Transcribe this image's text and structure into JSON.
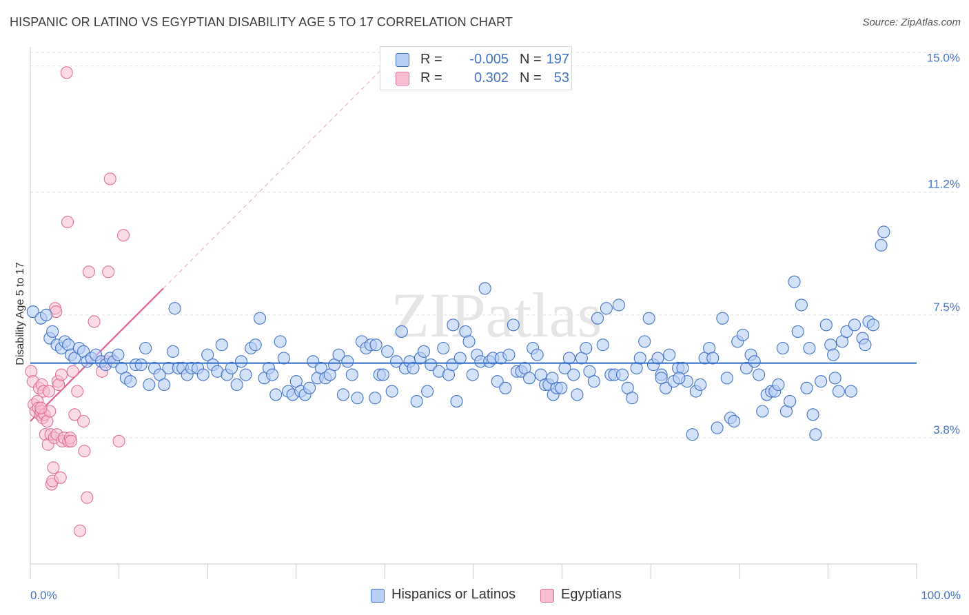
{
  "title": "HISPANIC OR LATINO VS EGYPTIAN DISABILITY AGE 5 TO 17 CORRELATION CHART",
  "source": "Source: ZipAtlas.com",
  "watermark": "ZIPatlas",
  "colors": {
    "blue": "#4472c4",
    "blue_fill": "#b8cff5",
    "blue_line": "#3b73c8",
    "pink": "#e0709a",
    "pink_fill": "#f7bdd0",
    "pink_line": "#e3628f",
    "grid": "#dddddd"
  },
  "legend": {
    "rows": [
      {
        "r_label": "R =",
        "r_value": "-0.005",
        "n_label": "N =",
        "n_value": "197"
      },
      {
        "r_label": "R =",
        "r_value": "0.302",
        "n_label": "N =",
        "n_value": "53"
      }
    ]
  },
  "bottom_legend": {
    "series1": "Hispanics or Latinos",
    "series2": "Egyptians"
  },
  "chart_data": {
    "type": "scatter",
    "xlabel": "",
    "ylabel": "Disability Age 5 to 17",
    "xlim": [
      0,
      100
    ],
    "ylim": [
      0,
      15.7
    ],
    "x_tick_labels": [
      "0.0%",
      "100.0%"
    ],
    "y_ticks": [
      {
        "value": 3.8,
        "label": "3.8%"
      },
      {
        "value": 7.5,
        "label": "7.5%"
      },
      {
        "value": 11.2,
        "label": "11.2%"
      },
      {
        "value": 15.0,
        "label": "15.0%"
      }
    ],
    "grid": true,
    "legend_position": "top-center",
    "series": [
      {
        "name": "Hispanics or Latinos",
        "color": "blue",
        "trend": {
          "x": [
            0,
            100
          ],
          "y": [
            6.05,
            6.05
          ]
        },
        "points": [
          [
            0.3,
            7.6
          ],
          [
            1.2,
            7.4
          ],
          [
            1.8,
            7.5
          ],
          [
            2.2,
            6.8
          ],
          [
            2.5,
            7.0
          ],
          [
            3.0,
            6.6
          ],
          [
            3.5,
            6.5
          ],
          [
            3.9,
            6.7
          ],
          [
            4.3,
            6.6
          ],
          [
            4.6,
            6.3
          ],
          [
            5.0,
            6.2
          ],
          [
            5.5,
            6.5
          ],
          [
            6.0,
            6.4
          ],
          [
            6.4,
            6.1
          ],
          [
            6.9,
            6.2
          ],
          [
            7.4,
            6.3
          ],
          [
            8.0,
            6.1
          ],
          [
            8.5,
            6.0
          ],
          [
            9.0,
            6.2
          ],
          [
            9.4,
            6.1
          ],
          [
            9.9,
            6.3
          ],
          [
            10.3,
            5.9
          ],
          [
            10.8,
            5.6
          ],
          [
            11.3,
            5.5
          ],
          [
            11.9,
            6.0
          ],
          [
            12.5,
            6.0
          ],
          [
            13.0,
            6.5
          ],
          [
            13.4,
            5.4
          ],
          [
            14.0,
            5.9
          ],
          [
            14.6,
            5.7
          ],
          [
            15.1,
            5.4
          ],
          [
            15.6,
            5.9
          ],
          [
            16.1,
            6.4
          ],
          [
            16.7,
            5.9
          ],
          [
            17.2,
            5.9
          ],
          [
            17.7,
            5.7
          ],
          [
            18.2,
            5.9
          ],
          [
            18.9,
            5.9
          ],
          [
            19.5,
            5.7
          ],
          [
            20.0,
            6.3
          ],
          [
            20.6,
            6.0
          ],
          [
            21.1,
            5.8
          ],
          [
            21.6,
            6.6
          ],
          [
            22.2,
            5.7
          ],
          [
            22.7,
            5.9
          ],
          [
            23.3,
            5.4
          ],
          [
            23.8,
            6.1
          ],
          [
            24.3,
            5.7
          ],
          [
            24.9,
            6.5
          ],
          [
            25.4,
            6.6
          ],
          [
            25.9,
            7.4
          ],
          [
            26.4,
            5.6
          ],
          [
            26.9,
            5.9
          ],
          [
            27.3,
            5.7
          ],
          [
            27.7,
            5.1
          ],
          [
            28.2,
            6.7
          ],
          [
            28.6,
            6.2
          ],
          [
            29.1,
            5.2
          ],
          [
            29.6,
            5.1
          ],
          [
            30.0,
            5.5
          ],
          [
            30.5,
            5.2
          ],
          [
            31.0,
            5.1
          ],
          [
            31.5,
            5.3
          ],
          [
            31.9,
            6.1
          ],
          [
            32.4,
            5.6
          ],
          [
            32.8,
            5.9
          ],
          [
            33.3,
            5.6
          ],
          [
            33.8,
            5.7
          ],
          [
            34.3,
            6.0
          ],
          [
            34.8,
            6.3
          ],
          [
            35.3,
            5.1
          ],
          [
            35.8,
            6.1
          ],
          [
            36.3,
            5.7
          ],
          [
            36.9,
            5.0
          ],
          [
            37.4,
            6.7
          ],
          [
            37.9,
            6.5
          ],
          [
            38.4,
            6.6
          ],
          [
            38.9,
            5.0
          ],
          [
            39.4,
            5.7
          ],
          [
            39.8,
            5.7
          ],
          [
            40.3,
            6.4
          ],
          [
            40.8,
            5.2
          ],
          [
            41.3,
            6.1
          ],
          [
            41.9,
            7.0
          ],
          [
            42.3,
            5.9
          ],
          [
            42.8,
            6.1
          ],
          [
            43.2,
            5.9
          ],
          [
            43.6,
            4.9
          ],
          [
            44.0,
            6.2
          ],
          [
            44.4,
            6.4
          ],
          [
            44.8,
            5.2
          ],
          [
            45.2,
            6.0
          ],
          [
            46.1,
            5.8
          ],
          [
            46.6,
            6.5
          ],
          [
            47.2,
            5.7
          ],
          [
            47.6,
            6.0
          ],
          [
            48.1,
            4.9
          ],
          [
            48.5,
            6.2
          ],
          [
            49.1,
            7.0
          ],
          [
            49.5,
            6.7
          ],
          [
            49.9,
            5.7
          ],
          [
            50.4,
            6.3
          ],
          [
            50.8,
            6.1
          ],
          [
            51.3,
            8.3
          ],
          [
            51.8,
            6.1
          ],
          [
            52.2,
            6.2
          ],
          [
            52.7,
            5.5
          ],
          [
            53.1,
            6.2
          ],
          [
            53.6,
            5.3
          ],
          [
            54.0,
            6.3
          ],
          [
            54.5,
            7.2
          ],
          [
            54.9,
            5.8
          ],
          [
            55.4,
            5.8
          ],
          [
            55.8,
            5.9
          ],
          [
            56.3,
            5.6
          ],
          [
            56.7,
            6.5
          ],
          [
            57.2,
            6.3
          ],
          [
            57.6,
            5.7
          ],
          [
            58.1,
            5.4
          ],
          [
            58.5,
            5.4
          ],
          [
            59.0,
            5.1
          ],
          [
            59.4,
            5.3
          ],
          [
            59.9,
            5.3
          ],
          [
            60.3,
            5.9
          ],
          [
            60.8,
            6.2
          ],
          [
            61.3,
            5.7
          ],
          [
            61.7,
            5.1
          ],
          [
            62.2,
            6.2
          ],
          [
            62.7,
            6.5
          ],
          [
            63.1,
            5.8
          ],
          [
            63.6,
            5.5
          ],
          [
            64.0,
            7.4
          ],
          [
            64.6,
            6.6
          ],
          [
            65.0,
            7.7
          ],
          [
            65.5,
            5.7
          ],
          [
            65.9,
            5.7
          ],
          [
            66.4,
            7.8
          ],
          [
            66.8,
            5.7
          ],
          [
            67.4,
            5.3
          ],
          [
            67.9,
            5.0
          ],
          [
            68.4,
            5.9
          ],
          [
            68.8,
            6.2
          ],
          [
            69.3,
            6.7
          ],
          [
            69.8,
            7.4
          ],
          [
            70.3,
            6.0
          ],
          [
            70.8,
            6.2
          ],
          [
            71.2,
            5.7
          ],
          [
            71.7,
            5.3
          ],
          [
            72.1,
            6.3
          ],
          [
            72.6,
            5.5
          ],
          [
            73.1,
            5.9
          ],
          [
            73.6,
            5.9
          ],
          [
            74.1,
            5.5
          ],
          [
            74.7,
            3.9
          ],
          [
            75.1,
            5.2
          ],
          [
            75.6,
            5.4
          ],
          [
            76.1,
            6.2
          ],
          [
            76.6,
            6.5
          ],
          [
            77.0,
            6.2
          ],
          [
            77.5,
            4.1
          ],
          [
            78.1,
            7.4
          ],
          [
            78.6,
            5.6
          ],
          [
            79.0,
            4.4
          ],
          [
            79.4,
            4.3
          ],
          [
            79.8,
            6.7
          ],
          [
            80.4,
            6.9
          ],
          [
            80.8,
            5.9
          ],
          [
            81.3,
            6.3
          ],
          [
            81.7,
            6.1
          ],
          [
            82.2,
            5.7
          ],
          [
            82.6,
            4.6
          ],
          [
            83.1,
            5.1
          ],
          [
            83.6,
            5.2
          ],
          [
            84.0,
            5.2
          ],
          [
            84.4,
            5.4
          ],
          [
            84.9,
            6.5
          ],
          [
            85.3,
            4.6
          ],
          [
            85.7,
            4.9
          ],
          [
            86.2,
            8.5
          ],
          [
            86.6,
            7.0
          ],
          [
            87.0,
            7.8
          ],
          [
            87.6,
            5.3
          ],
          [
            87.9,
            6.5
          ],
          [
            88.3,
            4.5
          ],
          [
            88.6,
            3.9
          ],
          [
            89.2,
            5.5
          ],
          [
            89.8,
            7.2
          ],
          [
            90.3,
            6.6
          ],
          [
            90.8,
            5.6
          ],
          [
            91.2,
            5.2
          ],
          [
            91.6,
            6.7
          ],
          [
            92.1,
            7.0
          ],
          [
            92.6,
            5.2
          ],
          [
            93.0,
            7.2
          ],
          [
            93.9,
            6.8
          ],
          [
            94.2,
            6.6
          ],
          [
            94.6,
            7.3
          ],
          [
            95.1,
            7.2
          ],
          [
            96.0,
            9.6
          ],
          [
            96.3,
            10.0
          ],
          [
            16.3,
            7.7
          ],
          [
            39.0,
            6.6
          ],
          [
            47.7,
            7.2
          ],
          [
            58.9,
            5.6
          ],
          [
            71.2,
            5.6
          ],
          [
            73.2,
            5.6
          ],
          [
            90.6,
            6.3
          ]
        ]
      },
      {
        "name": "Egyptians",
        "color": "pink",
        "trend": {
          "x": [
            0,
            15
          ],
          "y": [
            4.3,
            8.3
          ],
          "x_ext": [
            15,
            40
          ],
          "y_ext": [
            8.3,
            15.0
          ]
        },
        "points": [
          [
            0.1,
            5.8
          ],
          [
            0.3,
            5.5
          ],
          [
            0.4,
            4.8
          ],
          [
            0.6,
            4.6
          ],
          [
            0.8,
            4.9
          ],
          [
            0.9,
            4.7
          ],
          [
            1.0,
            5.3
          ],
          [
            1.1,
            4.5
          ],
          [
            1.2,
            4.6
          ],
          [
            1.3,
            5.4
          ],
          [
            1.4,
            4.4
          ],
          [
            1.5,
            5.2
          ],
          [
            1.6,
            4.5
          ],
          [
            1.7,
            3.9
          ],
          [
            1.9,
            4.3
          ],
          [
            2.0,
            3.6
          ],
          [
            2.1,
            5.2
          ],
          [
            2.2,
            4.6
          ],
          [
            2.3,
            3.9
          ],
          [
            2.4,
            2.4
          ],
          [
            2.5,
            2.5
          ],
          [
            2.6,
            2.9
          ],
          [
            2.7,
            3.8
          ],
          [
            2.8,
            7.7
          ],
          [
            2.9,
            7.6
          ],
          [
            3.0,
            3.9
          ],
          [
            3.1,
            5.5
          ],
          [
            3.2,
            5.4
          ],
          [
            3.4,
            2.6
          ],
          [
            3.5,
            5.7
          ],
          [
            3.6,
            3.7
          ],
          [
            3.8,
            3.8
          ],
          [
            4.1,
            14.8
          ],
          [
            4.2,
            10.3
          ],
          [
            4.3,
            3.7
          ],
          [
            4.5,
            3.8
          ],
          [
            4.6,
            3.7
          ],
          [
            4.8,
            5.8
          ],
          [
            5.0,
            4.5
          ],
          [
            5.3,
            5.2
          ],
          [
            5.6,
            1.0
          ],
          [
            6.0,
            4.3
          ],
          [
            6.1,
            3.4
          ],
          [
            6.4,
            2.0
          ],
          [
            6.6,
            8.8
          ],
          [
            7.2,
            7.3
          ],
          [
            8.1,
            5.8
          ],
          [
            8.6,
            6.1
          ],
          [
            8.8,
            8.8
          ],
          [
            9.0,
            11.6
          ],
          [
            10.0,
            3.7
          ],
          [
            10.5,
            9.9
          ],
          [
            1.2,
            4.7
          ]
        ]
      }
    ]
  }
}
